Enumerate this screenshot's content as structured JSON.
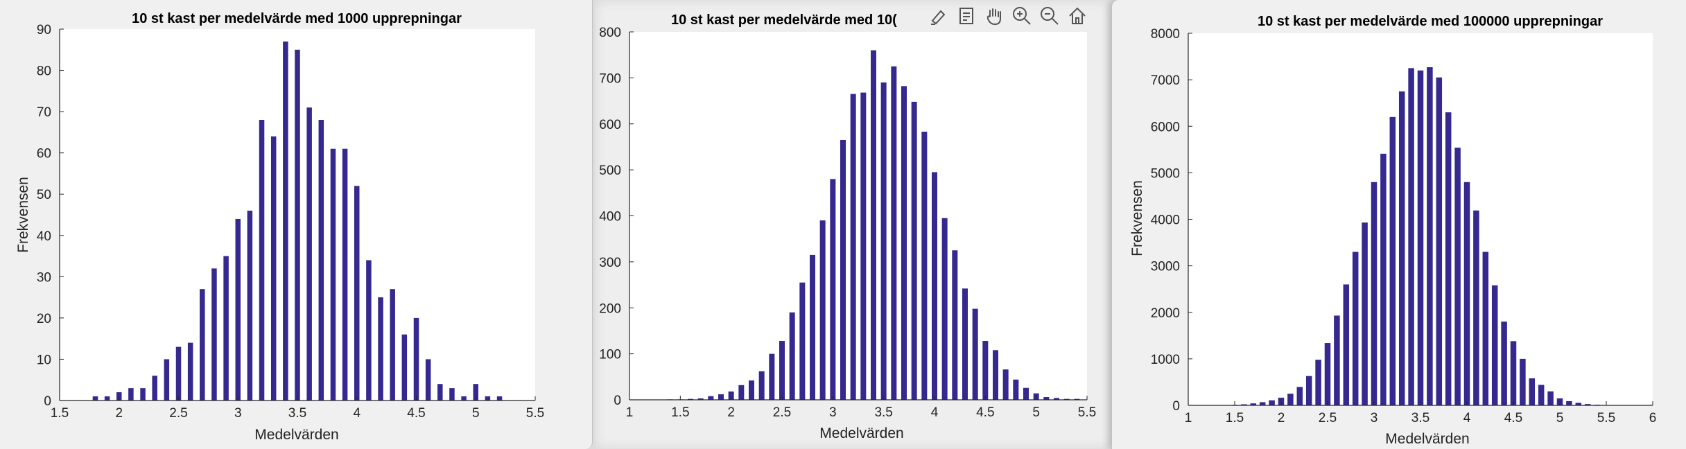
{
  "colors": {
    "bar": "#35288f",
    "axis": "#262626",
    "plot_bg": "#ffffff"
  },
  "toolbar": {
    "icons": [
      "brush-icon",
      "datatip-icon",
      "pan-hand-icon",
      "zoom-in-icon",
      "zoom-out-icon",
      "home-icon"
    ]
  },
  "chart_data": [
    {
      "type": "bar",
      "title": "10 st kast per medelvärde med 1000 upprepningar",
      "xlabel": "Medelvärden",
      "ylabel": "Frekvensen",
      "xlim": [
        1.5,
        5.5
      ],
      "ylim": [
        0,
        90
      ],
      "xticks": [
        "1.5",
        "2",
        "2.5",
        "3",
        "3.5",
        "4",
        "4.5",
        "5",
        "5.5"
      ],
      "yticks": [
        "0",
        "10",
        "20",
        "30",
        "40",
        "50",
        "60",
        "70",
        "80",
        "90"
      ],
      "grid": false,
      "x": [
        1.8,
        1.9,
        2.0,
        2.1,
        2.2,
        2.3,
        2.4,
        2.5,
        2.6,
        2.7,
        2.8,
        2.9,
        3.0,
        3.1,
        3.2,
        3.3,
        3.4,
        3.5,
        3.6,
        3.7,
        3.8,
        3.9,
        4.0,
        4.1,
        4.2,
        4.3,
        4.4,
        4.5,
        4.6,
        4.7,
        4.8,
        4.9,
        5.0,
        5.1,
        5.2
      ],
      "values": [
        1,
        1,
        2,
        3,
        3,
        6,
        10,
        13,
        14,
        27,
        32,
        35,
        44,
        46,
        68,
        64,
        87,
        85,
        71,
        68,
        61,
        61,
        52,
        34,
        25,
        27,
        16,
        20,
        10,
        4,
        3,
        1,
        4,
        1,
        1
      ]
    },
    {
      "type": "bar",
      "title": "10 st kast per medelvärde med 10(",
      "xlabel": "Medelvärden",
      "ylabel": "",
      "xlim": [
        1,
        5.5
      ],
      "ylim": [
        0,
        800
      ],
      "xticks": [
        "1",
        "1.5",
        "2",
        "2.5",
        "3",
        "3.5",
        "4",
        "4.5",
        "5",
        "5.5"
      ],
      "yticks": [
        "0",
        "100",
        "200",
        "300",
        "400",
        "500",
        "600",
        "700",
        "800"
      ],
      "grid": false,
      "x": [
        1.4,
        1.5,
        1.6,
        1.7,
        1.8,
        1.9,
        2.0,
        2.1,
        2.2,
        2.3,
        2.4,
        2.5,
        2.6,
        2.7,
        2.8,
        2.9,
        3.0,
        3.1,
        3.2,
        3.3,
        3.4,
        3.5,
        3.6,
        3.7,
        3.8,
        3.9,
        4.0,
        4.1,
        4.2,
        4.3,
        4.4,
        4.5,
        4.6,
        4.7,
        4.8,
        4.9,
        5.0,
        5.1,
        5.2,
        5.3,
        5.4
      ],
      "values": [
        1,
        1,
        2,
        3,
        8,
        12,
        18,
        32,
        42,
        62,
        100,
        128,
        190,
        255,
        315,
        390,
        480,
        565,
        665,
        668,
        760,
        690,
        725,
        682,
        648,
        583,
        495,
        395,
        325,
        242,
        198,
        128,
        108,
        66,
        44,
        26,
        14,
        6,
        4,
        2,
        2
      ]
    },
    {
      "type": "bar",
      "title": "10 st kast per medelvärde med 100000 upprepningar",
      "xlabel": "Medelvärden",
      "ylabel": "Frekvensen",
      "xlim": [
        1,
        6
      ],
      "ylim": [
        0,
        8000
      ],
      "xticks": [
        "1",
        "1.5",
        "2",
        "2.5",
        "3",
        "3.5",
        "4",
        "4.5",
        "5",
        "5.5",
        "6"
      ],
      "yticks": [
        "0",
        "1000",
        "2000",
        "3000",
        "4000",
        "5000",
        "6000",
        "7000",
        "8000"
      ],
      "grid": false,
      "x": [
        1.3,
        1.4,
        1.5,
        1.6,
        1.7,
        1.8,
        1.9,
        2.0,
        2.1,
        2.2,
        2.3,
        2.4,
        2.5,
        2.6,
        2.7,
        2.8,
        2.9,
        3.0,
        3.1,
        3.2,
        3.3,
        3.4,
        3.5,
        3.6,
        3.7,
        3.8,
        3.9,
        4.0,
        4.1,
        4.2,
        4.3,
        4.4,
        4.5,
        4.6,
        4.7,
        4.8,
        4.9,
        5.0,
        5.1,
        5.2,
        5.3,
        5.4,
        5.5,
        5.6
      ],
      "values": [
        3,
        6,
        12,
        22,
        42,
        68,
        108,
        165,
        250,
        395,
        630,
        980,
        1340,
        1930,
        2600,
        3300,
        3930,
        4800,
        5410,
        6200,
        6750,
        7250,
        7200,
        7270,
        7050,
        6300,
        5540,
        4800,
        4190,
        3300,
        2580,
        1800,
        1380,
        1000,
        580,
        440,
        300,
        150,
        90,
        55,
        28,
        14,
        7,
        3
      ]
    }
  ]
}
